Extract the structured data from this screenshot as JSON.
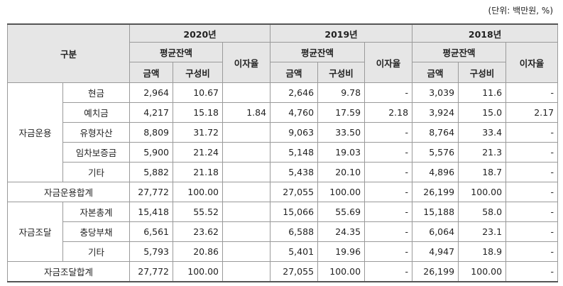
{
  "unit": "(단위: 백만원, %)",
  "header": {
    "category": "구분",
    "years": [
      "2020년",
      "2019년",
      "2018년"
    ],
    "avg_balance": "평균잔액",
    "rate": "이자율",
    "amount": "금액",
    "ratio": "구성비"
  },
  "sections": [
    {
      "group": "자금운용",
      "rows": [
        {
          "item": "현금",
          "cells": [
            "2,964",
            "10.67",
            null,
            "2,646",
            "9.78",
            "-",
            "3,039",
            "11.6",
            "-"
          ]
        },
        {
          "item": "예치금",
          "cells": [
            "4,217",
            "15.18",
            "1.84",
            "4,760",
            "17.59",
            "2.18",
            "3,924",
            "15.0",
            "2.17"
          ]
        },
        {
          "item": "유형자산",
          "cells": [
            "8,809",
            "31.72",
            null,
            "9,063",
            "33.50",
            "-",
            "8,764",
            "33.4",
            "-"
          ]
        },
        {
          "item": "임차보증금",
          "cells": [
            "5,900",
            "21.24",
            null,
            "5,148",
            "19.03",
            "-",
            "5,576",
            "21.3",
            "-"
          ]
        },
        {
          "item": "기타",
          "cells": [
            "5,882",
            "21.18",
            null,
            "5,438",
            "20.10",
            "-",
            "4,896",
            "18.7",
            "-"
          ]
        }
      ],
      "total": {
        "label": "자금운용합계",
        "cells": [
          "27,772",
          "100.00",
          null,
          "27,055",
          "100.00",
          "-",
          "26,199",
          "100.00",
          "-"
        ]
      }
    },
    {
      "group": "자금조달",
      "rows": [
        {
          "item": "자본총계",
          "cells": [
            "15,418",
            "55.52",
            null,
            "15,066",
            "55.69",
            "-",
            "15,188",
            "58.0",
            "-"
          ]
        },
        {
          "item": "충당부채",
          "cells": [
            "6,561",
            "23.62",
            null,
            "6,588",
            "24.35",
            "-",
            "6,064",
            "23.1",
            "-"
          ]
        },
        {
          "item": "기타",
          "cells": [
            "5,793",
            "20.86",
            null,
            "5,401",
            "19.96",
            "-",
            "4,947",
            "18.9",
            "-"
          ]
        }
      ],
      "total": {
        "label": "자금조달합계",
        "cells": [
          "27,772",
          "100.00",
          null,
          "27,055",
          "100.00",
          "-",
          "26,199",
          "100.00",
          "-"
        ]
      }
    }
  ]
}
